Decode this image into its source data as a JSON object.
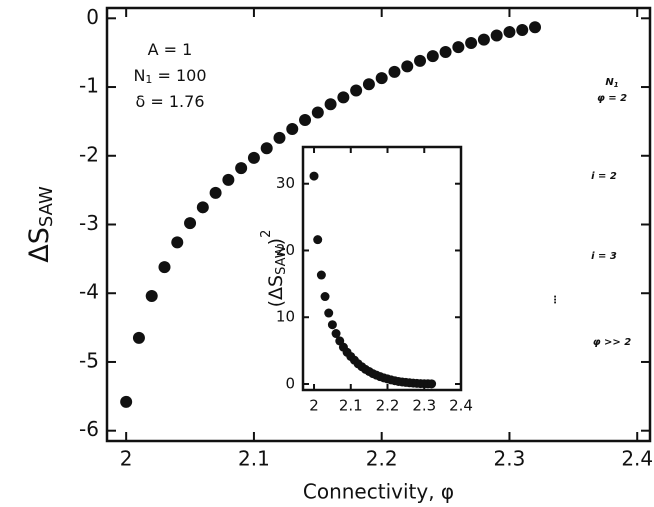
{
  "chart_data": [
    {
      "type": "scatter",
      "xlabel": "Connectivity, φ",
      "ylabel": {
        "main": "ΔS",
        "sub": "SAW"
      },
      "annotations": [
        {
          "pre": "A = 1"
        },
        {
          "pre": "N",
          "sub": "1",
          "post": " = 100"
        },
        {
          "pre": "δ = 1.76"
        }
      ],
      "x": [
        2.0,
        2.01,
        2.02,
        2.03,
        2.04,
        2.05,
        2.06,
        2.07,
        2.08,
        2.09,
        2.1,
        2.11,
        2.12,
        2.13,
        2.14,
        2.15,
        2.16,
        2.17,
        2.18,
        2.19,
        2.2,
        2.21,
        2.22,
        2.23,
        2.24,
        2.25,
        2.26,
        2.27,
        2.28,
        2.29,
        2.3,
        2.31,
        2.32
      ],
      "series": [
        {
          "color": "#111111",
          "values": [
            -5.58,
            -4.65,
            -4.04,
            -3.62,
            -3.26,
            -2.98,
            -2.75,
            -2.54,
            -2.35,
            -2.18,
            -2.03,
            -1.89,
            -1.74,
            -1.61,
            -1.48,
            -1.37,
            -1.25,
            -1.15,
            -1.05,
            -0.96,
            -0.87,
            -0.78,
            -0.7,
            -0.62,
            -0.55,
            -0.49,
            -0.42,
            -0.36,
            -0.31,
            -0.25,
            -0.2,
            -0.17,
            -0.13
          ]
        }
      ],
      "xlim": [
        1.985,
        2.41
      ],
      "ylim": [
        -6.15,
        0.15
      ],
      "xticks": [
        2,
        2.1,
        2.2,
        2.3,
        2.4
      ],
      "yticks": [
        0,
        -1,
        -2,
        -3,
        -4,
        -5,
        -6
      ]
    },
    {
      "type": "scatter",
      "ylabel": {
        "main": "(ΔS",
        "sub": "SAW",
        "post": ")",
        "sup": "2"
      },
      "x": [
        2.0,
        2.01,
        2.02,
        2.03,
        2.04,
        2.05,
        2.06,
        2.07,
        2.08,
        2.09,
        2.1,
        2.11,
        2.12,
        2.13,
        2.14,
        2.15,
        2.16,
        2.17,
        2.18,
        2.19,
        2.2,
        2.21,
        2.22,
        2.23,
        2.24,
        2.25,
        2.26,
        2.27,
        2.28,
        2.29,
        2.3,
        2.31,
        2.32
      ],
      "series": [
        {
          "color": "#111111",
          "values": [
            31.14,
            21.62,
            16.32,
            13.1,
            10.63,
            8.88,
            7.56,
            6.45,
            5.52,
            4.75,
            4.12,
            3.57,
            3.03,
            2.59,
            2.19,
            1.88,
            1.56,
            1.32,
            1.1,
            0.92,
            0.76,
            0.61,
            0.49,
            0.38,
            0.3,
            0.24,
            0.18,
            0.13,
            0.1,
            0.06,
            0.04,
            0.03,
            0.02
          ]
        }
      ],
      "xlim": [
        1.97,
        2.4
      ],
      "ylim": [
        -0.9,
        35.5
      ],
      "xticks": [
        2,
        2.1,
        2.2,
        2.3,
        2.4
      ],
      "yticks": [
        0,
        10,
        20,
        30
      ]
    }
  ],
  "diagram": {
    "labels": [
      {
        "pre": "N",
        "sub": "1"
      },
      {
        "pre": "φ = 2"
      },
      {
        "pre": "i = 2"
      },
      {
        "pre": "i = 3"
      },
      {
        "pre": "⋮"
      },
      {
        "pre": "φ >> 2"
      }
    ]
  }
}
